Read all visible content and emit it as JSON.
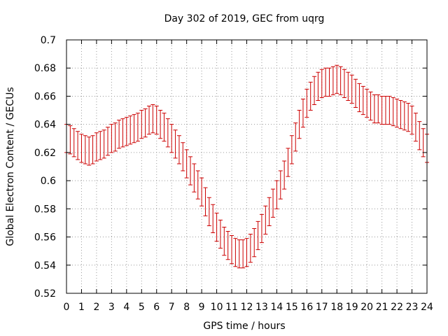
{
  "chart_data": {
    "type": "errorbar",
    "title": "Day 302 of 2019, GEC from uqrg",
    "xlabel": "GPS time / hours",
    "ylabel": "Global Electron Content / GECUs",
    "xlim": [
      0,
      24
    ],
    "ylim": [
      0.52,
      0.7
    ],
    "x_ticks": [
      "0",
      "1",
      "2",
      "3",
      "4",
      "5",
      "6",
      "7",
      "8",
      "9",
      "10",
      "11",
      "12",
      "13",
      "14",
      "15",
      "16",
      "17",
      "18",
      "19",
      "20",
      "21",
      "22",
      "23",
      "24"
    ],
    "y_ticks": [
      "0.52",
      "0.54",
      "0.56",
      "0.58",
      "0.6",
      "0.62",
      "0.64",
      "0.66",
      "0.68",
      "0.7"
    ],
    "grid": true,
    "series_color": "#cc0000",
    "error": 0.01,
    "x": [
      0,
      0.25,
      0.5,
      0.75,
      1,
      1.25,
      1.5,
      1.75,
      2,
      2.25,
      2.5,
      2.75,
      3,
      3.25,
      3.5,
      3.75,
      4,
      4.25,
      4.5,
      4.75,
      5,
      5.25,
      5.5,
      5.75,
      6,
      6.25,
      6.5,
      6.75,
      7,
      7.25,
      7.5,
      7.75,
      8,
      8.25,
      8.5,
      8.75,
      9,
      9.25,
      9.5,
      9.75,
      10,
      10.25,
      10.5,
      10.75,
      11,
      11.25,
      11.5,
      11.75,
      12,
      12.25,
      12.5,
      12.75,
      13,
      13.25,
      13.5,
      13.75,
      14,
      14.25,
      14.5,
      14.75,
      15,
      15.25,
      15.5,
      15.75,
      16,
      16.25,
      16.5,
      16.75,
      17,
      17.25,
      17.5,
      17.75,
      18,
      18.25,
      18.5,
      18.75,
      19,
      19.25,
      19.5,
      19.75,
      20,
      20.25,
      20.5,
      20.75,
      21,
      21.25,
      21.5,
      21.75,
      22,
      22.25,
      22.5,
      22.75,
      23,
      23.25,
      23.5,
      23.75,
      24
    ],
    "y": [
      0.63,
      0.629,
      0.627,
      0.625,
      0.623,
      0.622,
      0.621,
      0.622,
      0.624,
      0.625,
      0.626,
      0.628,
      0.63,
      0.631,
      0.633,
      0.634,
      0.635,
      0.636,
      0.637,
      0.638,
      0.64,
      0.641,
      0.643,
      0.644,
      0.643,
      0.64,
      0.638,
      0.634,
      0.63,
      0.626,
      0.622,
      0.617,
      0.612,
      0.607,
      0.602,
      0.597,
      0.592,
      0.585,
      0.578,
      0.573,
      0.567,
      0.562,
      0.557,
      0.554,
      0.551,
      0.549,
      0.548,
      0.548,
      0.549,
      0.552,
      0.556,
      0.561,
      0.566,
      0.572,
      0.578,
      0.584,
      0.59,
      0.597,
      0.604,
      0.613,
      0.622,
      0.631,
      0.64,
      0.648,
      0.655,
      0.66,
      0.664,
      0.667,
      0.669,
      0.67,
      0.67,
      0.671,
      0.672,
      0.671,
      0.669,
      0.667,
      0.665,
      0.662,
      0.659,
      0.657,
      0.655,
      0.653,
      0.651,
      0.651,
      0.65,
      0.65,
      0.65,
      0.649,
      0.648,
      0.647,
      0.646,
      0.645,
      0.643,
      0.638,
      0.632,
      0.627,
      0.623
    ]
  }
}
